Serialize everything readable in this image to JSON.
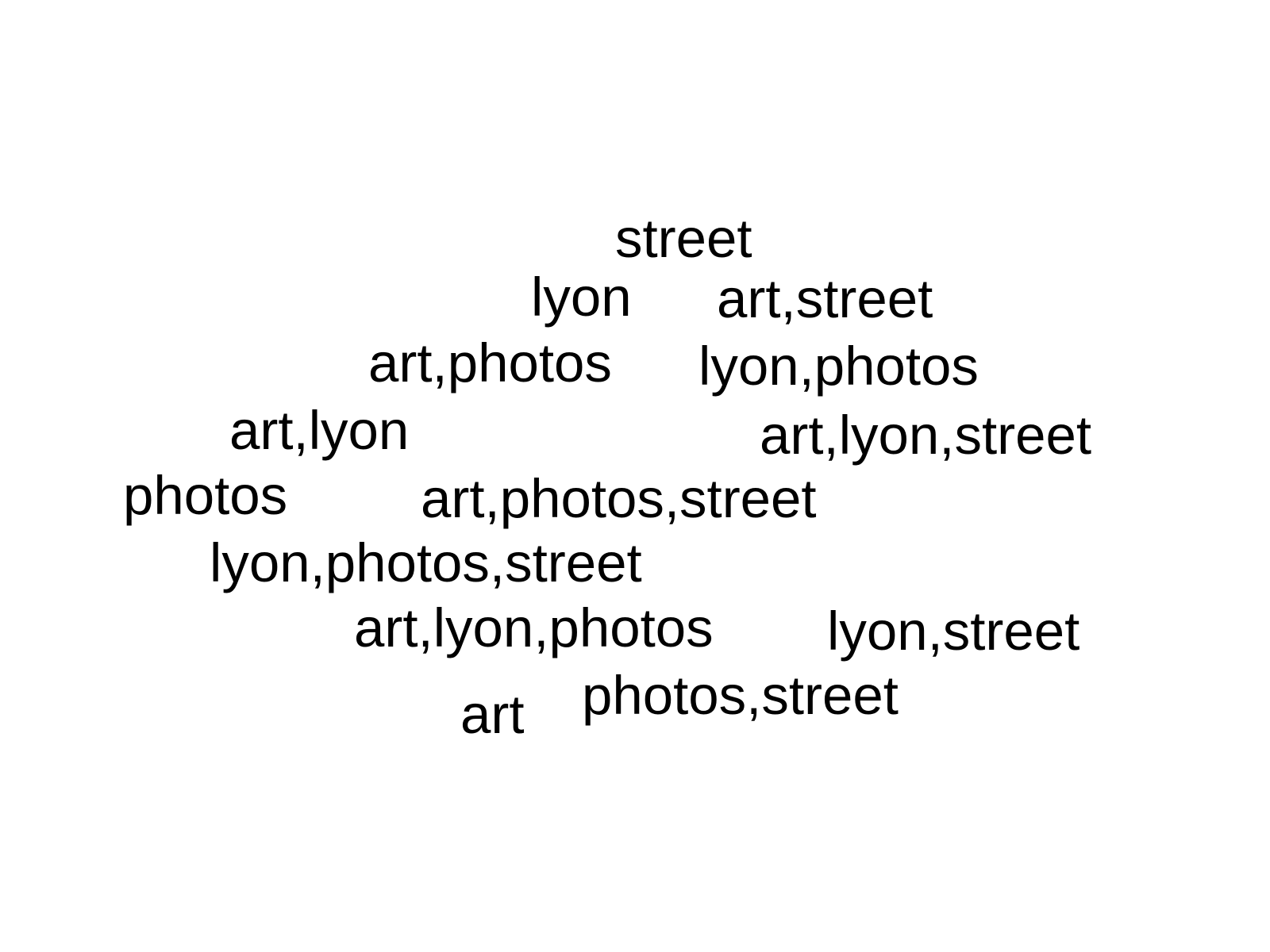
{
  "word_cloud": {
    "text_color": "#000000",
    "background_color": "#ffffff",
    "words": [
      {
        "text": "street"
      },
      {
        "text": "lyon"
      },
      {
        "text": "art,street"
      },
      {
        "text": "art,photos"
      },
      {
        "text": "lyon,photos"
      },
      {
        "text": "art,lyon"
      },
      {
        "text": "art,lyon,street"
      },
      {
        "text": "photos"
      },
      {
        "text": "art,photos,street"
      },
      {
        "text": "lyon,photos,street"
      },
      {
        "text": "art,lyon,photos"
      },
      {
        "text": "lyon,street"
      },
      {
        "text": "photos,street"
      },
      {
        "text": "art"
      }
    ]
  }
}
